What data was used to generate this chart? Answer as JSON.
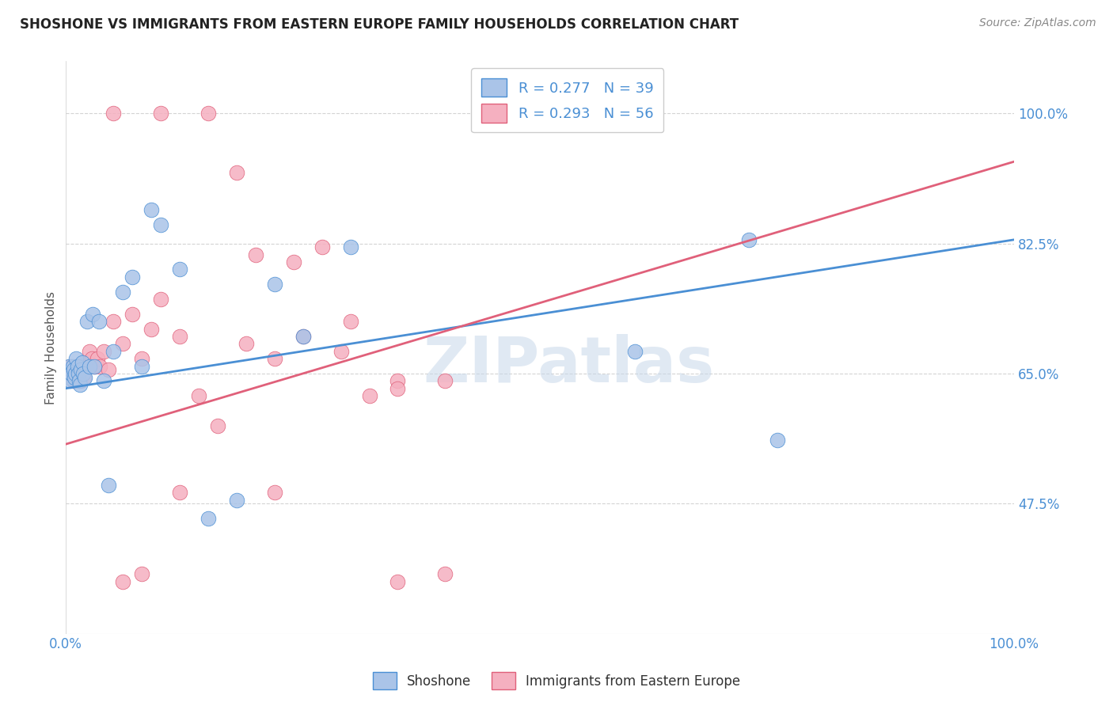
{
  "title": "SHOSHONE VS IMMIGRANTS FROM EASTERN EUROPE FAMILY HOUSEHOLDS CORRELATION CHART",
  "source": "Source: ZipAtlas.com",
  "ylabel": "Family Households",
  "yticks_labels": [
    "100.0%",
    "82.5%",
    "65.0%",
    "47.5%"
  ],
  "ytick_vals": [
    1.0,
    0.825,
    0.65,
    0.475
  ],
  "xlim": [
    0.0,
    1.0
  ],
  "ylim": [
    0.3,
    1.07
  ],
  "shoshone_color": "#aac4e8",
  "immigrant_color": "#f5b0c0",
  "shoshone_line_color": "#4a8fd4",
  "immigrant_line_color": "#e0607a",
  "watermark": "ZIPatlas",
  "shoshone_x": [
    0.003,
    0.004,
    0.005,
    0.006,
    0.007,
    0.008,
    0.009,
    0.01,
    0.011,
    0.012,
    0.013,
    0.014,
    0.015,
    0.016,
    0.017,
    0.018,
    0.02,
    0.022,
    0.025,
    0.028,
    0.03,
    0.035,
    0.04,
    0.045,
    0.05,
    0.06,
    0.07,
    0.08,
    0.09,
    0.1,
    0.12,
    0.15,
    0.18,
    0.22,
    0.25,
    0.3,
    0.6,
    0.72,
    0.75
  ],
  "shoshone_y": [
    0.66,
    0.645,
    0.64,
    0.65,
    0.66,
    0.655,
    0.645,
    0.65,
    0.67,
    0.66,
    0.65,
    0.64,
    0.635,
    0.655,
    0.665,
    0.65,
    0.645,
    0.72,
    0.66,
    0.73,
    0.66,
    0.72,
    0.64,
    0.5,
    0.68,
    0.76,
    0.78,
    0.66,
    0.87,
    0.85,
    0.79,
    0.455,
    0.48,
    0.77,
    0.7,
    0.82,
    0.68,
    0.83,
    0.56
  ],
  "immigrant_x": [
    0.003,
    0.005,
    0.006,
    0.007,
    0.008,
    0.009,
    0.01,
    0.011,
    0.012,
    0.013,
    0.014,
    0.015,
    0.016,
    0.017,
    0.018,
    0.019,
    0.02,
    0.022,
    0.025,
    0.027,
    0.03,
    0.033,
    0.036,
    0.04,
    0.045,
    0.05,
    0.06,
    0.07,
    0.08,
    0.09,
    0.1,
    0.12,
    0.14,
    0.16,
    0.19,
    0.22,
    0.25,
    0.29,
    0.32,
    0.35,
    0.05,
    0.1,
    0.15,
    0.18,
    0.2,
    0.24,
    0.27,
    0.3,
    0.35,
    0.4,
    0.06,
    0.08,
    0.12,
    0.22,
    0.35,
    0.4
  ],
  "immigrant_y": [
    0.655,
    0.66,
    0.645,
    0.65,
    0.64,
    0.655,
    0.65,
    0.66,
    0.645,
    0.65,
    0.66,
    0.645,
    0.64,
    0.655,
    0.65,
    0.645,
    0.66,
    0.665,
    0.68,
    0.67,
    0.66,
    0.67,
    0.66,
    0.68,
    0.655,
    0.72,
    0.69,
    0.73,
    0.67,
    0.71,
    0.75,
    0.7,
    0.62,
    0.58,
    0.69,
    0.67,
    0.7,
    0.68,
    0.62,
    0.64,
    1.0,
    1.0,
    1.0,
    0.92,
    0.81,
    0.8,
    0.82,
    0.72,
    0.63,
    0.64,
    0.37,
    0.38,
    0.49,
    0.49,
    0.37,
    0.38
  ],
  "background_color": "#ffffff",
  "grid_color": "#c8c8c8"
}
